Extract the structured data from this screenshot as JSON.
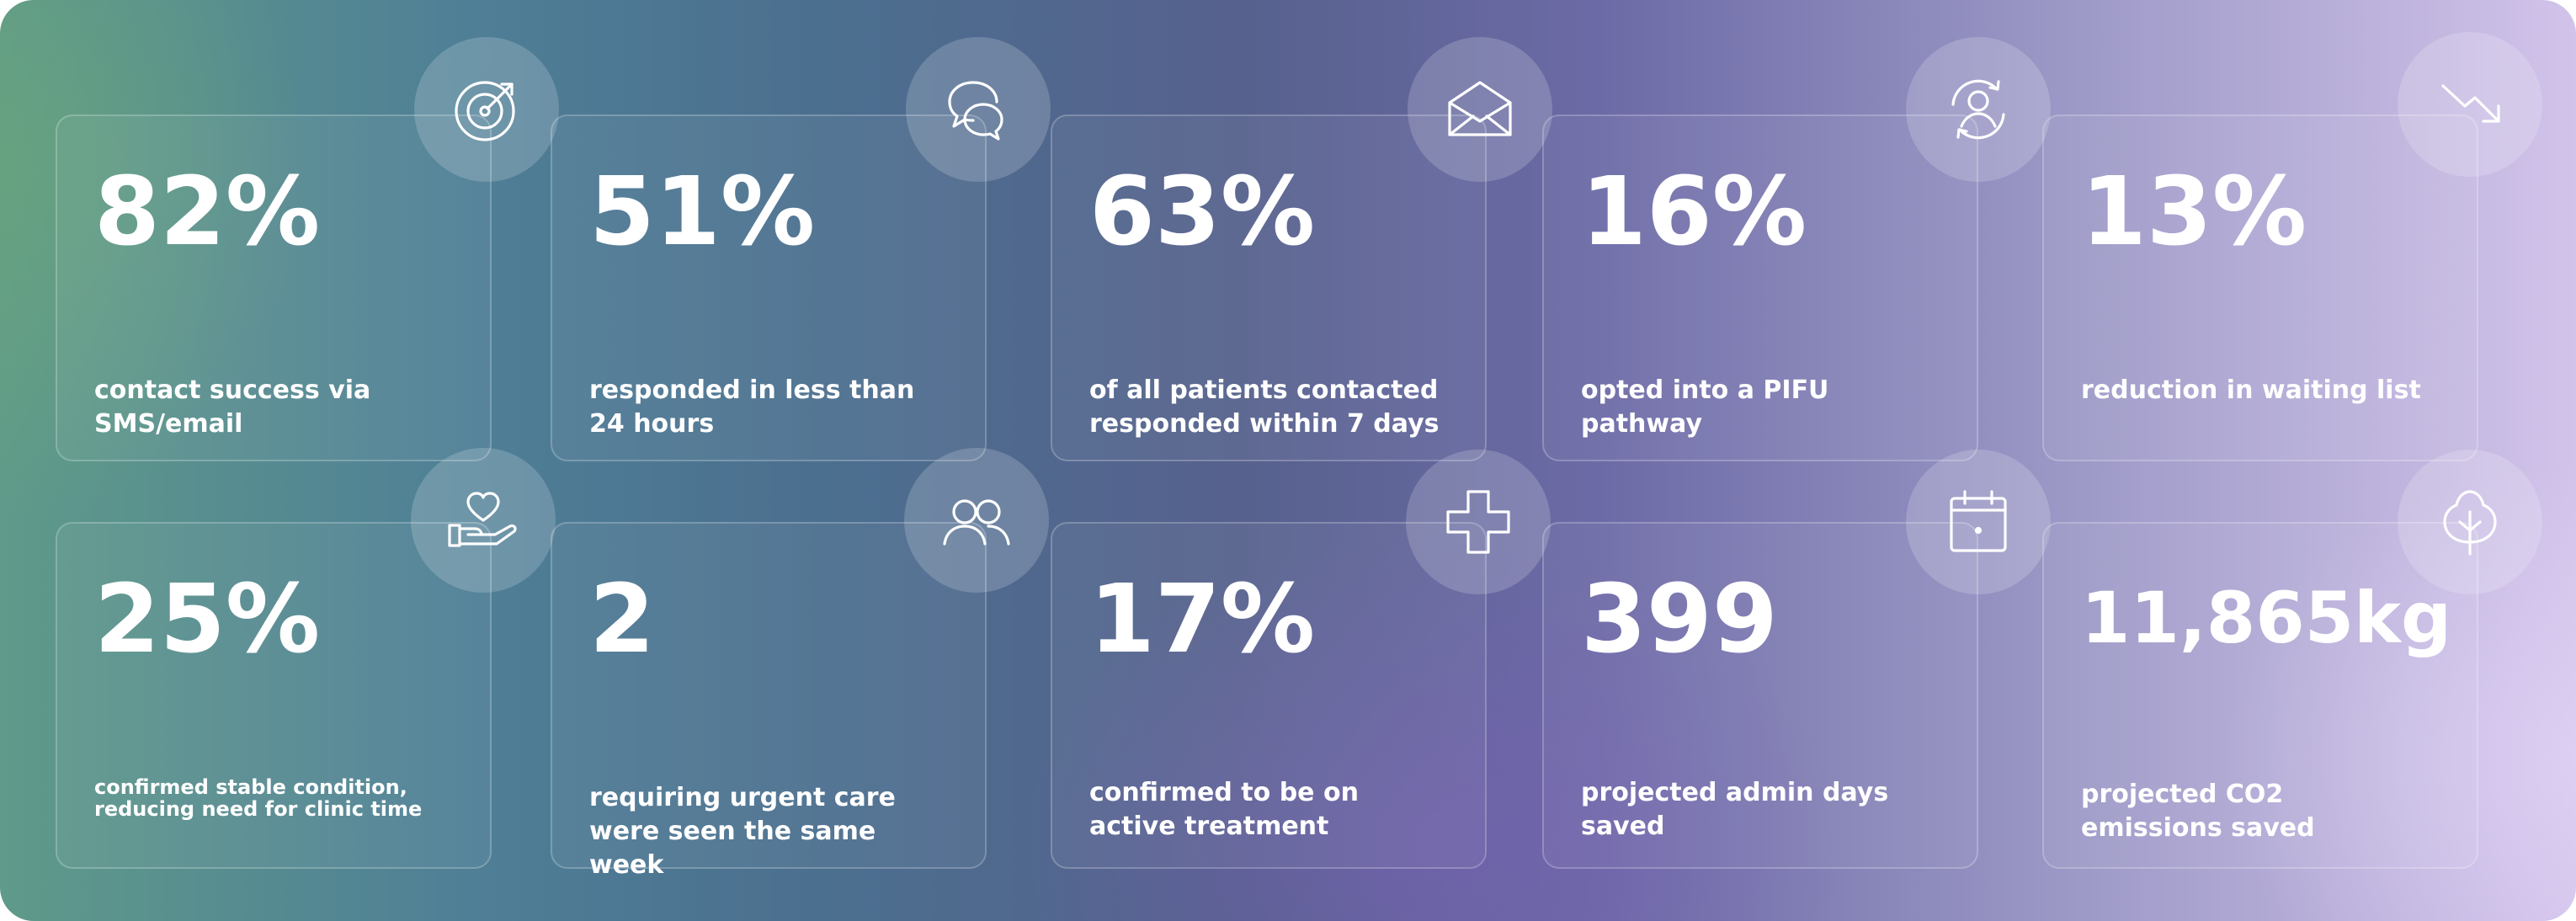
{
  "stats": [
    {
      "value": "82%",
      "label": "contact success via SMS/email",
      "icon": "target-icon"
    },
    {
      "value": "51%",
      "label": "responded in less than 24 hours",
      "icon": "chat-bubbles-icon"
    },
    {
      "value": "63%",
      "label": "of all patients contacted responded within 7 days",
      "icon": "envelope-icon"
    },
    {
      "value": "16%",
      "label": "opted into a PIFU pathway",
      "icon": "user-cycle-icon"
    },
    {
      "value": "13%",
      "label": "reduction in waiting list",
      "icon": "trend-down-icon"
    },
    {
      "value": "25%",
      "label": "confirmed stable condition, reducing need for clinic time",
      "icon": "heart-hand-icon"
    },
    {
      "value": "2",
      "label": "requiring urgent care were seen the same week",
      "icon": "users-icon"
    },
    {
      "value": "17%",
      "label": "confirmed to be on active treatment",
      "icon": "medical-cross-icon"
    },
    {
      "value": "399",
      "label": "projected admin days saved",
      "icon": "calendar-icon"
    },
    {
      "value": "11,865kg",
      "label": "projected CO2 emissions saved",
      "icon": "tree-icon"
    }
  ]
}
